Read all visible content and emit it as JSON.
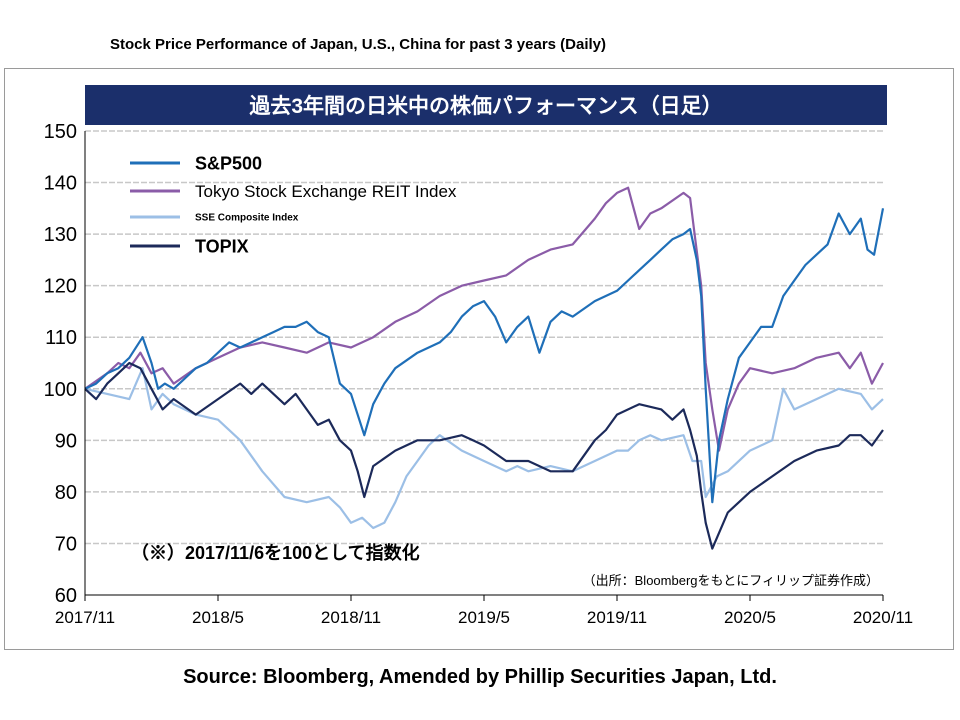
{
  "page": {
    "top_title": "Stock Price Performance of Japan, U.S., China for past 3 years (Daily)",
    "source": "Source: Bloomberg, Amended by Phillip Securities Japan, Ltd."
  },
  "chart_data": {
    "type": "line",
    "title": "過去3年間の日米中の株価パフォーマンス（日足）",
    "note": "（※）2017/11/6を100として指数化",
    "source_note": "（出所：Bloombergをもとにフィリップ証券作成）",
    "xlabel": "",
    "ylabel": "",
    "ylim": [
      60,
      150
    ],
    "yticks": [
      60,
      70,
      80,
      90,
      100,
      110,
      120,
      130,
      140,
      150
    ],
    "xlim": [
      0,
      36
    ],
    "xticks": [
      {
        "x": 0,
        "label": "2017/11"
      },
      {
        "x": 6,
        "label": "2018/5"
      },
      {
        "x": 12,
        "label": "2018/11"
      },
      {
        "x": 18,
        "label": "2019/5"
      },
      {
        "x": 24,
        "label": "2019/11"
      },
      {
        "x": 30,
        "label": "2020/5"
      },
      {
        "x": 36,
        "label": "2020/11"
      }
    ],
    "grid": true,
    "legend_position": "top-left",
    "series": [
      {
        "name": "S&P500",
        "color": "#1f6fb8",
        "x": [
          0,
          0.5,
          1,
          1.5,
          2,
          2.6,
          3,
          3.3,
          3.6,
          4,
          4.5,
          5,
          5.5,
          6,
          6.5,
          7,
          7.5,
          8,
          8.5,
          9,
          9.5,
          10,
          10.5,
          11,
          11.5,
          12,
          12.6,
          13,
          13.5,
          14,
          15,
          16,
          16.5,
          17,
          17.5,
          18,
          18.5,
          19,
          19.5,
          20,
          20.5,
          21,
          21.5,
          22,
          23,
          24,
          24.5,
          25,
          25.5,
          26,
          26.5,
          27,
          27.3,
          27.6,
          27.8,
          28,
          28.3,
          28.6,
          29,
          29.5,
          30,
          30.5,
          31,
          31.5,
          32,
          32.5,
          33,
          33.5,
          34,
          34.5,
          35,
          35.3,
          35.6,
          36
        ],
        "values": [
          100,
          101,
          103,
          104,
          106,
          110,
          105,
          100,
          101,
          100,
          102,
          104,
          105,
          107,
          109,
          108,
          109,
          110,
          111,
          112,
          112,
          113,
          111,
          110,
          101,
          99,
          91,
          97,
          101,
          104,
          107,
          109,
          111,
          114,
          116,
          117,
          114,
          109,
          112,
          114,
          107,
          113,
          115,
          114,
          117,
          119,
          121,
          123,
          125,
          127,
          129,
          130,
          131,
          125,
          118,
          100,
          78,
          90,
          98,
          106,
          109,
          112,
          112,
          118,
          121,
          124,
          126,
          128,
          134,
          130,
          133,
          127,
          126,
          135
        ]
      },
      {
        "name": "Tokyo Stock Exchange REIT Index",
        "color": "#8b5ca8",
        "x": [
          0,
          1,
          1.5,
          2,
          2.5,
          3,
          3.5,
          4,
          5,
          6,
          7,
          8,
          9,
          10,
          11,
          12,
          13,
          14,
          15,
          16,
          17,
          18,
          19,
          20,
          21,
          22,
          23,
          23.5,
          24,
          24.5,
          25,
          25.5,
          26,
          27,
          27.3,
          27.5,
          27.8,
          28,
          28.3,
          28.6,
          29,
          29.5,
          30,
          31,
          32,
          33,
          34,
          34.5,
          35,
          35.5,
          36
        ],
        "values": [
          100,
          103,
          105,
          104,
          107,
          103,
          104,
          101,
          104,
          106,
          108,
          109,
          108,
          107,
          109,
          108,
          110,
          113,
          115,
          118,
          120,
          121,
          122,
          125,
          127,
          128,
          133,
          136,
          138,
          139,
          131,
          134,
          135,
          138,
          137,
          130,
          120,
          105,
          96,
          88,
          96,
          101,
          104,
          103,
          104,
          106,
          107,
          104,
          107,
          101,
          105
        ]
      },
      {
        "name": "SSE Composite Index",
        "color": "#9cbfe6",
        "x": [
          0,
          1,
          2,
          2.6,
          3,
          3.5,
          4,
          5,
          6,
          7,
          8,
          9,
          10,
          11,
          11.5,
          12,
          12.5,
          13,
          13.5,
          14,
          14.5,
          15,
          15.5,
          16,
          17,
          18,
          18.5,
          19,
          19.5,
          20,
          21,
          22,
          23,
          24,
          24.5,
          25,
          25.5,
          26,
          27,
          27.4,
          27.8,
          28,
          28.5,
          29,
          30,
          31,
          31.5,
          32,
          33,
          34,
          35,
          35.5,
          36
        ],
        "values": [
          100,
          99,
          98,
          104,
          96,
          99,
          97,
          95,
          94,
          90,
          84,
          79,
          78,
          79,
          77,
          74,
          75,
          73,
          74,
          78,
          83,
          86,
          89,
          91,
          88,
          86,
          85,
          84,
          85,
          84,
          85,
          84,
          86,
          88,
          88,
          90,
          91,
          90,
          91,
          86,
          86,
          79,
          83,
          84,
          88,
          90,
          100,
          96,
          98,
          100,
          99,
          96,
          98
        ]
      },
      {
        "name": "TOPIX",
        "color": "#1c2a5a",
        "x": [
          0,
          0.5,
          1,
          1.5,
          2,
          2.5,
          3,
          3.5,
          4,
          5,
          6,
          7,
          7.5,
          8,
          9,
          9.5,
          10,
          10.5,
          11,
          11.5,
          12,
          12.3,
          12.6,
          13,
          14,
          15,
          16,
          17,
          17.5,
          18,
          19,
          20,
          21,
          22,
          23,
          23.5,
          24,
          25,
          26,
          26.5,
          27,
          27.3,
          27.6,
          27.8,
          28,
          28.3,
          29,
          30,
          31,
          32,
          33,
          34,
          34.5,
          35,
          35.5,
          36
        ],
        "values": [
          100,
          98,
          101,
          103,
          105,
          104,
          100,
          96,
          98,
          95,
          98,
          101,
          99,
          101,
          97,
          99,
          96,
          93,
          94,
          90,
          88,
          84,
          79,
          85,
          88,
          90,
          90,
          91,
          90,
          89,
          86,
          86,
          84,
          84,
          90,
          92,
          95,
          97,
          96,
          94,
          96,
          92,
          87,
          80,
          74,
          69,
          76,
          80,
          83,
          86,
          88,
          89,
          91,
          91,
          89,
          92
        ]
      }
    ]
  }
}
